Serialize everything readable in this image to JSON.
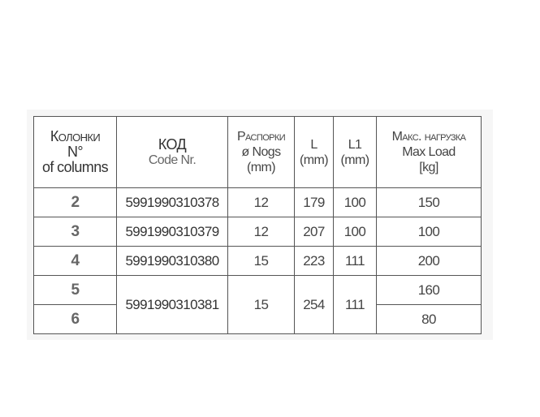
{
  "header": {
    "columns_ru": "Колонки",
    "columns_sym": "N°",
    "columns_en": "of columns",
    "code_ru": "КОД",
    "code_en": "Code Nr.",
    "nogs_ru": "Распорки",
    "nogs_en": "ø Nogs",
    "nogs_unit": "(mm)",
    "l": "L",
    "l_unit": "(mm)",
    "l1": "L1",
    "l1_unit": "(mm)",
    "load_ru": "Макс. нагрузка",
    "load_en": "Max Load",
    "load_unit": "[kg]"
  },
  "rows": [
    {
      "columns": "2",
      "code": "5991990310378",
      "nogs": "12",
      "l": "179",
      "l1": "100",
      "load": "150"
    },
    {
      "columns": "3",
      "code": "5991990310379",
      "nogs": "12",
      "l": "207",
      "l1": "100",
      "load": "100"
    },
    {
      "columns": "4",
      "code": "5991990310380",
      "nogs": "15",
      "l": "223",
      "l1": "111",
      "load": "200"
    },
    {
      "columns": "5",
      "code": "5991990310381",
      "nogs": "15",
      "l": "254",
      "l1": "111",
      "load": "160"
    },
    {
      "columns": "6",
      "load": "80"
    }
  ]
}
